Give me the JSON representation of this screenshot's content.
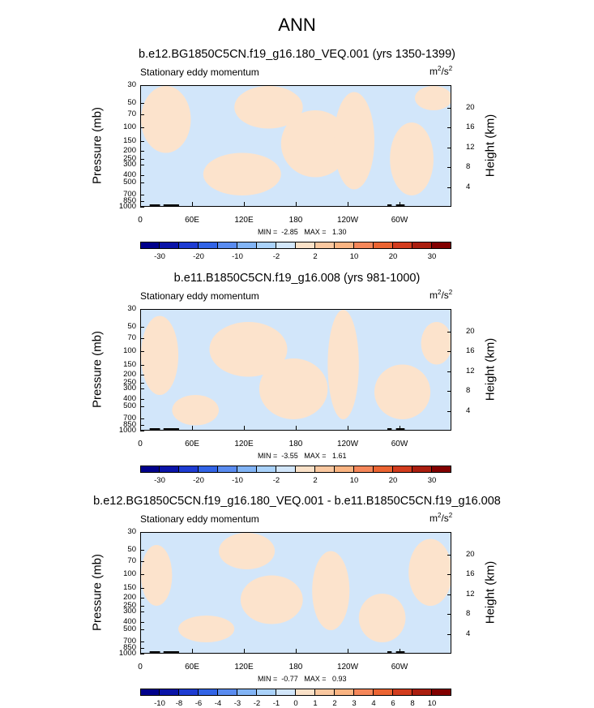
{
  "page_title": "ANN",
  "chart_data": [
    {
      "type": "heatmap",
      "title": "b.e12.BG1850C5CN.f19_g16.180_VEQ.001 (yrs 1350-1399)",
      "subtitle": "Stationary eddy momentum",
      "units_base": "m",
      "units_exp1": "2",
      "units_mid": "/s",
      "units_exp2": "2",
      "ylabel": "Pressure (mb)",
      "ylabel_right": "Height (km)",
      "yticks": [
        "30",
        "50",
        "70",
        "100",
        "150",
        "200",
        "250",
        "300",
        "400",
        "500",
        "700",
        "850",
        "1000"
      ],
      "yticks_right": [
        "20",
        "16",
        "12",
        "8",
        "4"
      ],
      "xticks": [
        "0",
        "60E",
        "120E",
        "180",
        "120W",
        "60W"
      ],
      "minmax": "MIN =  -2.85   MAX =   1.30",
      "colorbar_labels": [
        "-30",
        "-20",
        "-10",
        "-2",
        "2",
        "10",
        "20",
        "30"
      ],
      "z_min": -2.85,
      "z_max": 1.3
    },
    {
      "type": "heatmap",
      "title": "b.e11.B1850C5CN.f19_g16.008 (yrs 981-1000)",
      "subtitle": "Stationary eddy momentum",
      "units_base": "m",
      "units_exp1": "2",
      "units_mid": "/s",
      "units_exp2": "2",
      "ylabel": "Pressure (mb)",
      "ylabel_right": "Height (km)",
      "yticks": [
        "30",
        "50",
        "70",
        "100",
        "150",
        "200",
        "250",
        "300",
        "400",
        "500",
        "700",
        "850",
        "1000"
      ],
      "yticks_right": [
        "20",
        "16",
        "12",
        "8",
        "4"
      ],
      "xticks": [
        "0",
        "60E",
        "120E",
        "180",
        "120W",
        "60W"
      ],
      "minmax": "MIN =  -3.55   MAX =   1.61",
      "colorbar_labels": [
        "-30",
        "-20",
        "-10",
        "-2",
        "2",
        "10",
        "20",
        "30"
      ],
      "z_min": -3.55,
      "z_max": 1.61
    },
    {
      "type": "heatmap",
      "title": "b.e12.BG1850C5CN.f19_g16.180_VEQ.001 - b.e11.B1850C5CN.f19_g16.008",
      "subtitle": "Stationary eddy momentum",
      "units_base": "m",
      "units_exp1": "2",
      "units_mid": "/s",
      "units_exp2": "2",
      "ylabel": "Pressure (mb)",
      "ylabel_right": "Height (km)",
      "yticks": [
        "30",
        "50",
        "70",
        "100",
        "150",
        "200",
        "250",
        "300",
        "400",
        "500",
        "700",
        "850",
        "1000"
      ],
      "yticks_right": [
        "20",
        "16",
        "12",
        "8",
        "4"
      ],
      "xticks": [
        "0",
        "60E",
        "120E",
        "180",
        "120W",
        "60W"
      ],
      "minmax": "MIN =  -0.77   MAX =   0.93",
      "colorbar_labels": [
        "-10",
        "-8",
        "-6",
        "-4",
        "-3",
        "-2",
        "-1",
        "0",
        "1",
        "2",
        "3",
        "4",
        "6",
        "8",
        "10"
      ],
      "z_min": -0.77,
      "z_max": 0.93
    }
  ],
  "colors": {
    "cb16": [
      "#00008b",
      "#0a14a8",
      "#1e3cd2",
      "#3264e6",
      "#5a8cf0",
      "#82b4f5",
      "#aad2fa",
      "#d2e6fa",
      "#fae1c8",
      "#fac8a0",
      "#fab482",
      "#f5875a",
      "#eb6432",
      "#d23c1e",
      "#aa1e0f",
      "#820000"
    ],
    "blue_light": "#d2e6fa",
    "orange_light": "#fce3cc",
    "topo": "#000000"
  }
}
